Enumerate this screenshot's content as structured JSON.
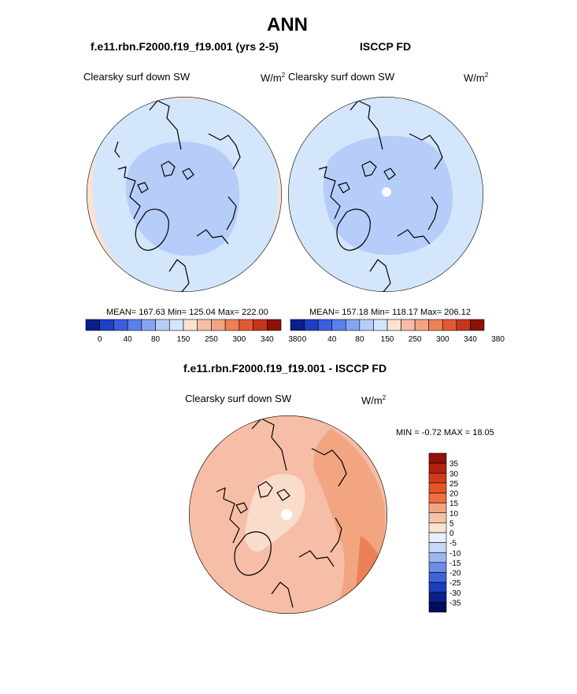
{
  "page": {
    "title": "ANN",
    "left_case": "f.e11.rbn.F2000.f19_f19.001 (yrs 2-5)",
    "right_case": "ISCCP FD",
    "diff_title": "f.e11.rbn.F2000.f19_f19.001 - ISCCP FD"
  },
  "colors": {
    "ocean_light": "#d4e6fb",
    "arctic_mid": "#b6cdf9",
    "warm_edge": "#fbe2d3",
    "diff_base": "#f6bea6",
    "diff_light": "#fadccb",
    "diff_mid": "#f3a582",
    "diff_strong": "#ec8056",
    "coast": "#000000"
  },
  "chart_data": [
    {
      "type": "heatmap",
      "projection": "polar-stereographic north",
      "field_label": "Clearsky surf down SW",
      "units_label": "W/m",
      "units_sup": "2",
      "stats": {
        "mean": 167.63,
        "min": 125.04,
        "max": 222.0
      },
      "stats_text": "MEAN= 167.63  Min= 125.04  Max= 222.00",
      "colorbar": {
        "ticks": [
          "0",
          "40",
          "80",
          "150",
          "250",
          "300",
          "340",
          "380"
        ],
        "colors": [
          "#0a1f8c",
          "#1f3fc4",
          "#3a5fe0",
          "#5a80ef",
          "#86a4f3",
          "#b6cdf9",
          "#d4e6fb",
          "#fbe2d3",
          "#f6bea6",
          "#f3a582",
          "#ec8056",
          "#e25a34",
          "#c6361c",
          "#8f1108"
        ]
      }
    },
    {
      "type": "heatmap",
      "projection": "polar-stereographic north",
      "field_label": "Clearsky surf down SW",
      "units_label": "W/m",
      "units_sup": "2",
      "stats": {
        "mean": 157.18,
        "min": 118.17,
        "max": 206.12
      },
      "stats_text": "MEAN= 157.18  Min= 118.17  Max= 206.12",
      "colorbar": {
        "ticks": [
          "0",
          "40",
          "80",
          "150",
          "250",
          "300",
          "340",
          "380"
        ],
        "colors": [
          "#0a1f8c",
          "#1f3fc4",
          "#3a5fe0",
          "#5a80ef",
          "#86a4f3",
          "#b6cdf9",
          "#d4e6fb",
          "#fbe2d3",
          "#f6bea6",
          "#f3a582",
          "#ec8056",
          "#e25a34",
          "#c6361c",
          "#8f1108"
        ]
      }
    },
    {
      "type": "heatmap",
      "projection": "polar-stereographic north",
      "field_label": "Clearsky surf down SW",
      "units_label": "W/m",
      "units_sup": "2",
      "stats": {
        "min": -0.72,
        "max": 18.05
      },
      "stats_text": "MIN =  -0.72 MAX =  18.05",
      "colorbar": {
        "ticks": [
          "35",
          "30",
          "25",
          "20",
          "15",
          "10",
          "5",
          "0",
          "-5",
          "-10",
          "-15",
          "-20",
          "-25",
          "-30",
          "-35"
        ],
        "colors": [
          "#8f1108",
          "#b2200f",
          "#d13a1a",
          "#e8542a",
          "#f06d3e",
          "#f3a582",
          "#f6c3a8",
          "#fbe2d3",
          "#e8eefb",
          "#c9d8f7",
          "#9bb6f0",
          "#6a8ee6",
          "#3d63d9",
          "#1c3cc0",
          "#0a1f8c",
          "#000c5c"
        ]
      }
    }
  ]
}
